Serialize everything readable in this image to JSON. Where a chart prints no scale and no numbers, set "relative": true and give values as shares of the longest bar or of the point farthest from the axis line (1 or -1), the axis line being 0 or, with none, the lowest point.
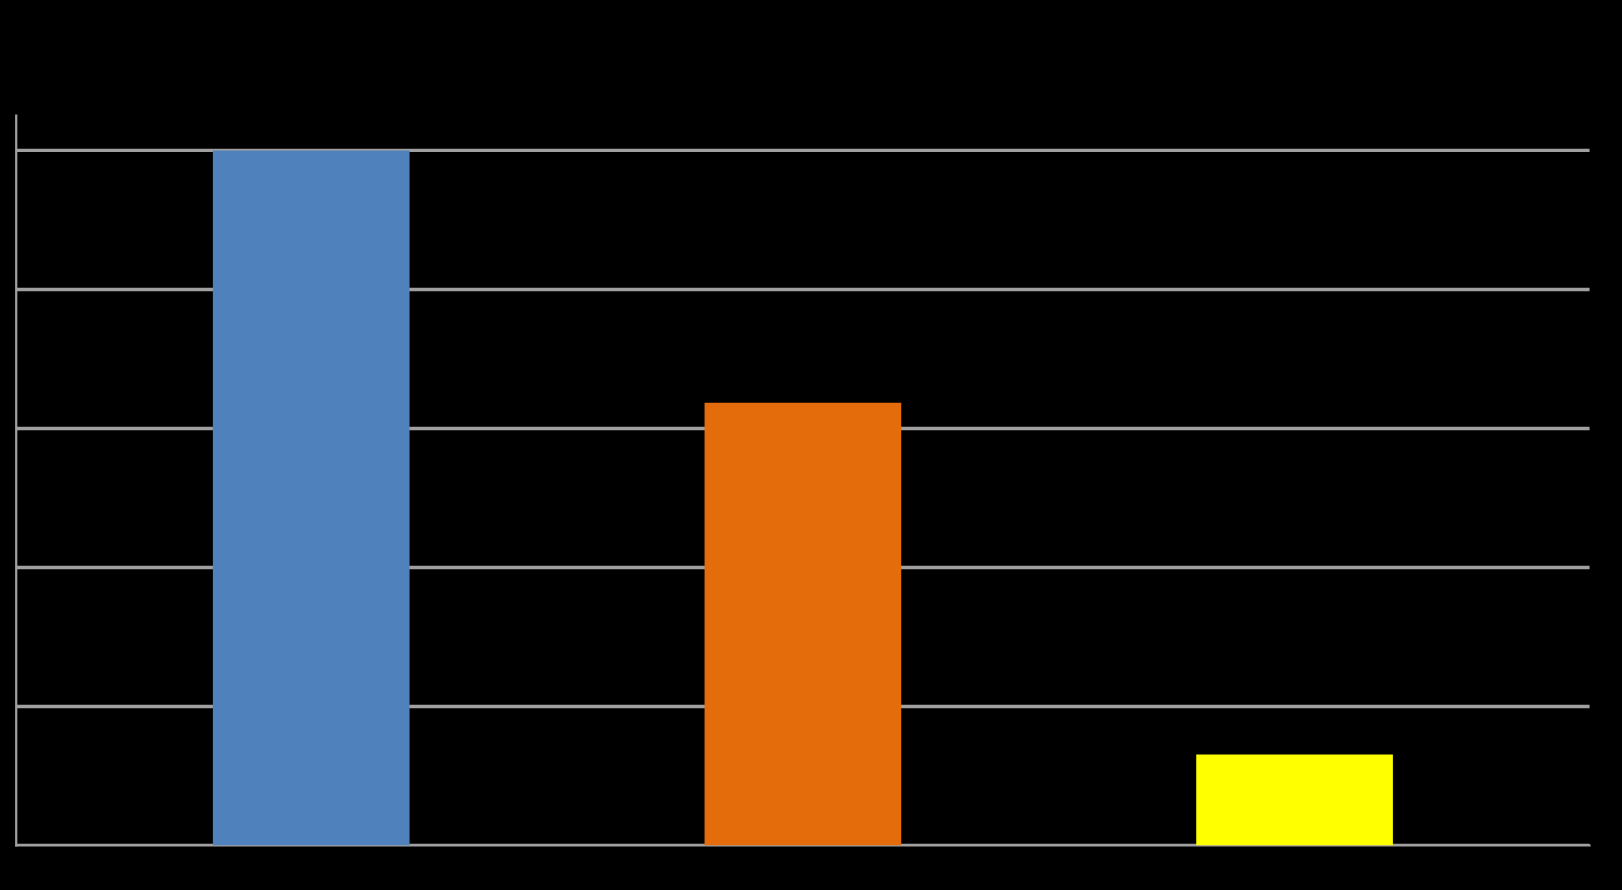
{
  "chart_data": {
    "type": "bar",
    "relative": true,
    "categories": [
      null,
      null,
      null
    ],
    "values": [
      1,
      0.637,
      0.131
    ],
    "colors": [
      "#4f81bd",
      "#e46c0a",
      "#ffff00"
    ],
    "grid": "y"
  }
}
